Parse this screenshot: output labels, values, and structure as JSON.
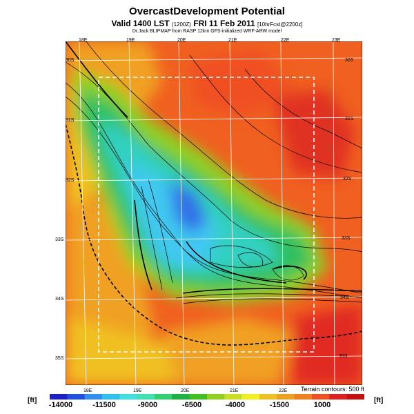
{
  "header": {
    "title": "OvercastDevelopment Potential",
    "subtitle_main": "Valid 1400 LST",
    "subtitle_small": "(1200Z)",
    "subtitle_date": "FRI 11 Feb 2011",
    "subtitle_fcst": "[10hrFcst@2200z]",
    "credit": "Dr.Jack BLIPMAP from RASP 12km GFS-initialized WRF-ARW model"
  },
  "map": {
    "lon_labels_top": [
      "18E",
      "19E",
      "20E",
      "21E",
      "22E",
      "23E"
    ],
    "lon_labels_bottom": [
      "18E",
      "19E",
      "20E",
      "21E",
      "22E"
    ],
    "lat_labels_left": [
      "30S",
      "31S",
      "32S",
      "33S",
      "34S",
      "35S"
    ],
    "lat_labels_right": [
      "30S",
      "31S",
      "32S",
      "33S",
      "34S",
      "35S"
    ],
    "terrain_note": "Terrain contours: 500 ft"
  },
  "legend": {
    "unit_left": "[ft]",
    "unit_right": "[ft]",
    "tick_labels": [
      "-14000",
      "-11500",
      "-9000",
      "-6500",
      "-4000",
      "-1500",
      "1000"
    ],
    "colors": [
      "#2020c8",
      "#2050e0",
      "#3090f0",
      "#30c0f0",
      "#40e0e0",
      "#40e0b0",
      "#30d070",
      "#20b040",
      "#40c020",
      "#90d020",
      "#c8e020",
      "#f0f020",
      "#f0c020",
      "#f0a020",
      "#f08020",
      "#f05020",
      "#e02020",
      "#c81010"
    ]
  }
}
